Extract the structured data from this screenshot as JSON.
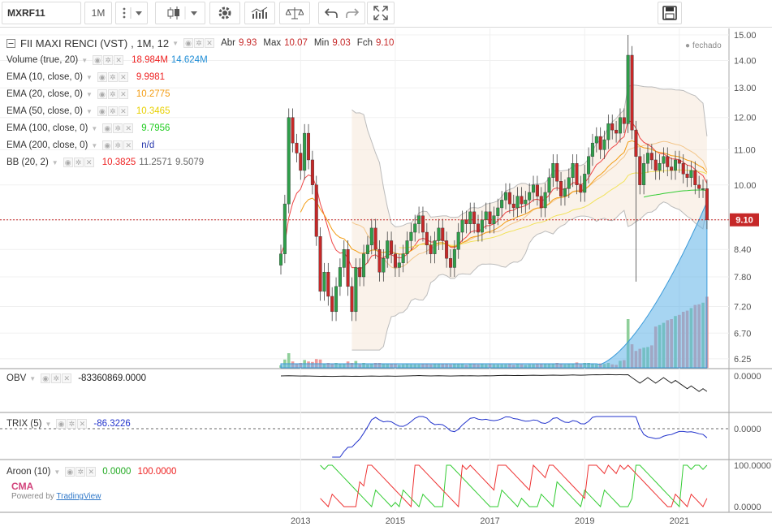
{
  "toolbar": {
    "symbol": "MXRF11",
    "interval": "1M",
    "icons": [
      "more-icon",
      "dropdown-icon",
      "candles-icon",
      "dropdown-icon",
      "settings-icon",
      "indicators-icon",
      "compare-icon",
      "undo-icon",
      "redo-icon",
      "fullscreen-icon",
      "save-icon"
    ]
  },
  "header": {
    "title": "FII MAXI RENCI (VST)",
    "timeframe": ", 1M, 12",
    "ohlc_labels": {
      "open": "Abr",
      "high": "Max",
      "low": "Min",
      "close": "Fch"
    },
    "ohlc_values": {
      "open": "9.93",
      "high": "10.07",
      "low": "9.03",
      "close": "9.10"
    },
    "market_status": "fechado"
  },
  "indicators": [
    {
      "label": "Volume (true, 20)",
      "values": [
        "18.984M",
        "14.624M"
      ],
      "colors": [
        "#ee2222",
        "#1f8dd6"
      ]
    },
    {
      "label": "EMA (10, close, 0)",
      "values": [
        "9.9981"
      ],
      "colors": [
        "#ee2222"
      ]
    },
    {
      "label": "EMA (20, close, 0)",
      "values": [
        "10.2775"
      ],
      "colors": [
        "#f39c12"
      ]
    },
    {
      "label": "EMA (50, close, 0)",
      "values": [
        "10.3465"
      ],
      "colors": [
        "#e8d000"
      ]
    },
    {
      "label": "EMA (100, close, 0)",
      "values": [
        "9.7956"
      ],
      "colors": [
        "#22cc22"
      ]
    },
    {
      "label": "EMA (200, close, 0)",
      "values": [
        "n/d"
      ],
      "colors": [
        "#2233aa"
      ]
    },
    {
      "label": "BB (20, 2)",
      "values": [
        "10.3825",
        "11.2571",
        "9.5079"
      ],
      "colors": [
        "#ee2222",
        "#666666",
        "#666666"
      ]
    }
  ],
  "panes": {
    "obv": {
      "label": "OBV",
      "value": "-83360869.0000",
      "color": "#222222",
      "axis": [
        "0.0000"
      ]
    },
    "trix": {
      "label": "TRIX (5)",
      "value": "-86.3226",
      "color": "#2233cc",
      "axis": [
        "0.0000"
      ]
    },
    "aroon": {
      "label": "Aroon (10)",
      "values": [
        "0.0000",
        "100.0000"
      ],
      "colors": [
        "#22cc22",
        "#ee2222"
      ],
      "axis": [
        "100.0000",
        "0.0000"
      ]
    }
  },
  "watermark": {
    "logo": "CMA",
    "powered": "Powered by",
    "brand": "TradingView"
  },
  "last_price_label": "9.10",
  "colors": {
    "up": "#2e9f4a",
    "down": "#c62828",
    "up_vol": "#8fcf9a",
    "down_vol": "#f09a9a",
    "last_line": "#c62828"
  },
  "chart_data": {
    "type": "candlestick",
    "y_axis_labels": [
      "15.00",
      "14.00",
      "13.00",
      "12.00",
      "11.00",
      "10.00",
      "9.10",
      "8.40",
      "7.80",
      "7.20",
      "6.70",
      "6.25"
    ],
    "x_axis_labels": [
      "2013",
      "2015",
      "2017",
      "2019",
      "2021"
    ],
    "ylim": [
      6.1,
      15.1
    ],
    "scale": "log",
    "start_month": "2012-08",
    "close_series": [
      8.3,
      9.5,
      12.0,
      11.2,
      10.9,
      10.4,
      11.5,
      10.7,
      10.0,
      8.7,
      7.5,
      7.9,
      7.4,
      7.1,
      7.6,
      8.0,
      8.4,
      7.6,
      7.1,
      8.0,
      7.8,
      8.3,
      8.5,
      8.9,
      8.4,
      7.9,
      8.2,
      8.6,
      8.3,
      8.0,
      8.1,
      8.3,
      8.6,
      8.8,
      9.0,
      9.2,
      8.8,
      8.5,
      8.3,
      8.6,
      8.9,
      8.6,
      8.2,
      8.0,
      8.4,
      8.8,
      9.1,
      9.0,
      9.3,
      9.0,
      8.8,
      9.1,
      9.3,
      9.0,
      9.2,
      9.4,
      9.6,
      9.8,
      9.5,
      9.4,
      9.7,
      9.5,
      9.6,
      9.8,
      10.0,
      9.7,
      9.4,
      9.8,
      10.2,
      10.6,
      10.1,
      9.7,
      9.9,
      10.2,
      10.6,
      10.0,
      9.8,
      10.3,
      10.8,
      11.2,
      11.4,
      11.0,
      11.3,
      11.8,
      11.6,
      11.5,
      12.0,
      11.8,
      14.2,
      11.6,
      10.8,
      10.0,
      10.6,
      10.9,
      10.7,
      10.4,
      10.6,
      10.8,
      10.5,
      10.4,
      10.7,
      10.6,
      10.3,
      10.2,
      10.4,
      10.0,
      9.9,
      9.9,
      9.1
    ],
    "ema10_last": 9.9981,
    "ema20_last": 10.2775,
    "ema50_last": 10.3465,
    "ema100_last": 9.7956,
    "bb_basis_last": 10.3825,
    "bb_upper_last": 11.2571,
    "bb_lower_last": 9.5079,
    "volume_last": 18984000,
    "volume_ma_last": 14624000,
    "obv_last": -83360869.0,
    "trix_last": -86.3226,
    "aroon_down_last": 0.0,
    "aroon_up_last": 100.0
  }
}
